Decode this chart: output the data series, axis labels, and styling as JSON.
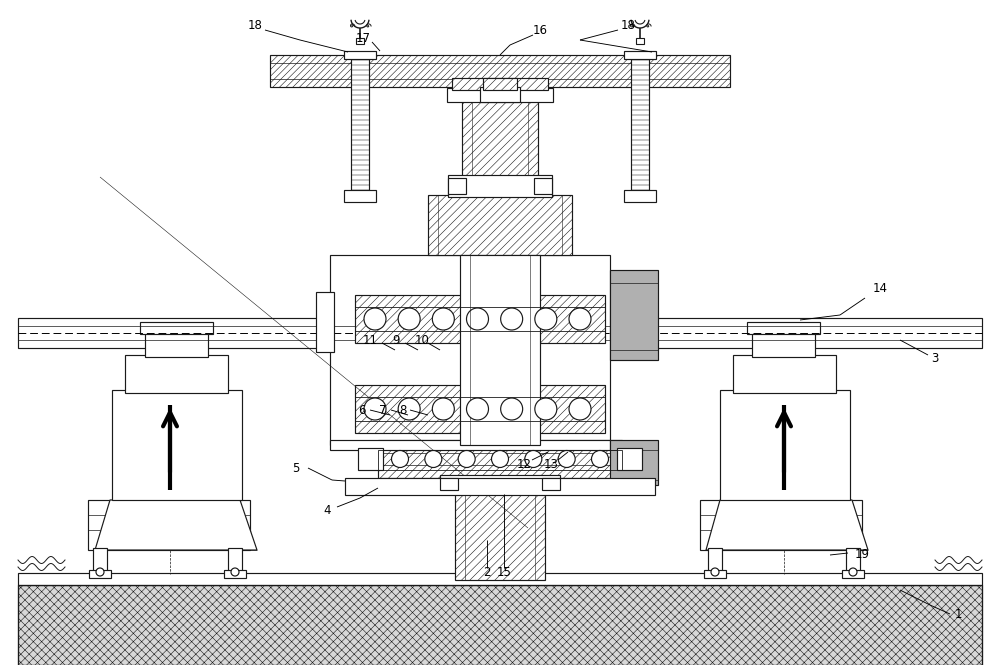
{
  "bg": "#ffffff",
  "lc": "#1a1a1a",
  "lw": 0.85,
  "hatch_lw": 0.4
}
